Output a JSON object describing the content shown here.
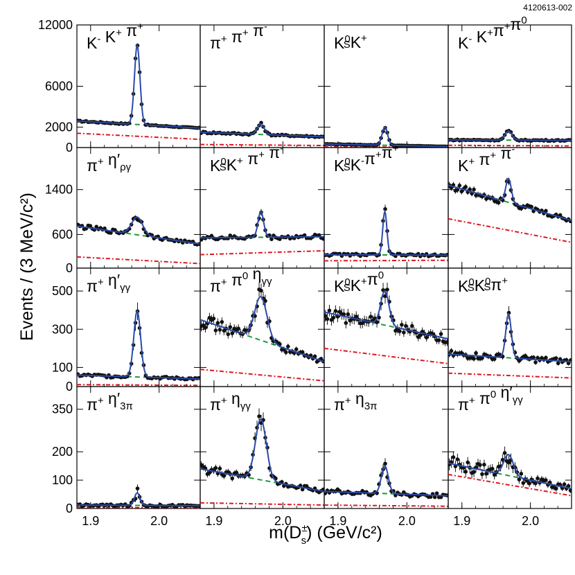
{
  "figure_id": "4120613-002",
  "ylabel": "Events / (3 MeV/c²)",
  "xlabel_main": "m(D",
  "xlabel_sup": "±",
  "xlabel_sub": "s",
  "xlabel_tail": ") (GeV/c²)",
  "colors": {
    "data": "#111111",
    "fit": "#2a4aa8",
    "background": "#1a9a3a",
    "other_background": "#e0141e"
  },
  "chart_data": [
    {
      "type": "scatter",
      "label": [
        [
          "K",
          "-"
        ],
        [
          " K",
          "+"
        ],
        [
          " π",
          "+"
        ]
      ],
      "xlim": [
        1.88,
        2.06
      ],
      "ylim": [
        0,
        12000
      ],
      "yticks": [
        0,
        2000,
        6000,
        12000
      ],
      "peak": 10000,
      "bkg_left": 2600,
      "bkg_right": 1900,
      "other_left": 1400,
      "other_right": 800,
      "width": 0.004,
      "error_frac": 0.015
    },
    {
      "type": "scatter",
      "label": [
        [
          "π",
          "+"
        ],
        [
          " π",
          "+"
        ],
        [
          " π",
          "-"
        ]
      ],
      "xlim": [
        1.88,
        2.06
      ],
      "ylim": [
        0,
        12000
      ],
      "yticks": [
        0,
        2000,
        6000,
        12000
      ],
      "peak": 2300,
      "bkg_left": 1500,
      "bkg_right": 1050,
      "other_left": 300,
      "other_right": 200,
      "width": 0.005,
      "error_frac": 0.04
    },
    {
      "type": "scatter",
      "label": [
        [
          "K",
          "0",
          "S"
        ],
        [
          "K",
          "+"
        ]
      ],
      "xlim": [
        1.88,
        2.06
      ],
      "ylim": [
        0,
        12000
      ],
      "yticks": [
        0,
        2000,
        6000,
        12000
      ],
      "peak": 2000,
      "bkg_left": 350,
      "bkg_right": 100,
      "other_left": 60,
      "other_right": 40,
      "width": 0.004,
      "error_frac": 0.05
    },
    {
      "type": "scatter",
      "label": [
        [
          "K",
          "-"
        ],
        [
          " K",
          "+"
        ],
        [
          "π",
          "+"
        ],
        [
          "π",
          "0"
        ]
      ],
      "xlim": [
        1.88,
        2.06
      ],
      "ylim": [
        0,
        12000
      ],
      "yticks": [
        0,
        2000,
        6000,
        12000
      ],
      "peak": 1600,
      "bkg_left": 750,
      "bkg_right": 700,
      "other_left": 220,
      "other_right": 160,
      "width": 0.005,
      "error_frac": 0.05
    },
    {
      "type": "scatter",
      "label": [
        [
          "π",
          "+"
        ],
        [
          " η′",
          "",
          "ργ"
        ]
      ],
      "xlim": [
        1.88,
        2.06
      ],
      "ylim": [
        0,
        2150
      ],
      "yticks": [
        0,
        600,
        1400
      ],
      "peak": 910,
      "bkg_left": 750,
      "bkg_right": 430,
      "other_left": 200,
      "other_right": 80,
      "width": 0.008,
      "error_frac": 0.035
    },
    {
      "type": "scatter",
      "label": [
        [
          "K",
          "0",
          "S"
        ],
        [
          "K",
          "+"
        ],
        [
          " π",
          "+"
        ],
        [
          " π",
          "-"
        ]
      ],
      "xlim": [
        1.88,
        2.06
      ],
      "ylim": [
        0,
        2150
      ],
      "yticks": [
        0,
        600,
        1400
      ],
      "peak": 1010,
      "bkg_left": 540,
      "bkg_right": 560,
      "other_left": 240,
      "other_right": 310,
      "width": 0.004,
      "error_frac": 0.045
    },
    {
      "type": "scatter",
      "label": [
        [
          "K",
          "0",
          "S"
        ],
        [
          "K",
          "-"
        ],
        [
          "π",
          "+"
        ],
        [
          "π",
          "+"
        ]
      ],
      "xlim": [
        1.88,
        2.06
      ],
      "ylim": [
        0,
        2150
      ],
      "yticks": [
        0,
        600,
        1400
      ],
      "peak": 1010,
      "bkg_left": 240,
      "bkg_right": 230,
      "other_left": 130,
      "other_right": 140,
      "width": 0.003,
      "error_frac": 0.06
    },
    {
      "type": "scatter",
      "label": [
        [
          "K",
          "+"
        ],
        [
          " π",
          "+"
        ],
        [
          " π",
          "-"
        ]
      ],
      "xlim": [
        1.88,
        2.06
      ],
      "ylim": [
        0,
        2150
      ],
      "yticks": [
        0,
        600,
        1400
      ],
      "peak": 1600,
      "bkg_left": 1480,
      "bkg_right": 850,
      "other_left": 880,
      "other_right": 460,
      "width": 0.004,
      "error_frac": 0.03
    },
    {
      "type": "scatter",
      "label": [
        [
          "π",
          "+"
        ],
        [
          " η′",
          "",
          "γγ"
        ]
      ],
      "xlim": [
        1.88,
        2.06
      ],
      "ylim": [
        0,
        620
      ],
      "yticks": [
        0,
        100,
        300,
        500
      ],
      "peak": 395,
      "bkg_left": 60,
      "bkg_right": 40,
      "other_left": 10,
      "other_right": 6,
      "width": 0.005,
      "error_frac": 0.09
    },
    {
      "type": "scatter",
      "label": [
        [
          "π",
          "+"
        ],
        [
          " π",
          "0"
        ],
        [
          " η",
          "",
          "γγ"
        ]
      ],
      "xlim": [
        1.88,
        2.06
      ],
      "ylim": [
        0,
        620
      ],
      "yticks": [
        0,
        100,
        300,
        500
      ],
      "peak": 470,
      "bkg_left": 350,
      "bkg_right": 130,
      "other_left": 90,
      "other_right": 30,
      "width": 0.009,
      "error_frac": 0.06
    },
    {
      "type": "scatter",
      "label": [
        [
          "K",
          "0",
          "S"
        ],
        [
          "K",
          "+"
        ],
        [
          "π",
          "0"
        ]
      ],
      "xlim": [
        1.88,
        2.06
      ],
      "ylim": [
        0,
        620
      ],
      "yticks": [
        0,
        100,
        300,
        500
      ],
      "peak": 500,
      "bkg_left": 390,
      "bkg_right": 250,
      "other_left": 200,
      "other_right": 120,
      "width": 0.006,
      "error_frac": 0.06
    },
    {
      "type": "scatter",
      "label": [
        [
          "K",
          "0",
          "S"
        ],
        [
          "K",
          "0",
          "S"
        ],
        [
          "π",
          "+"
        ]
      ],
      "xlim": [
        1.88,
        2.06
      ],
      "ylim": [
        0,
        620
      ],
      "yticks": [
        0,
        100,
        300,
        500
      ],
      "peak": 380,
      "bkg_left": 170,
      "bkg_right": 130,
      "other_left": 70,
      "other_right": 45,
      "width": 0.004,
      "error_frac": 0.07
    },
    {
      "type": "scatter",
      "label": [
        [
          "π",
          "+"
        ],
        [
          " η′",
          "",
          "3π"
        ]
      ],
      "xlim": [
        1.88,
        2.06
      ],
      "ylim": [
        0,
        430
      ],
      "yticks": [
        0,
        100,
        200,
        350
      ],
      "peak": 55,
      "bkg_left": 12,
      "bkg_right": 10,
      "other_left": 4,
      "other_right": 3,
      "width": 0.004,
      "error_frac": 0.2
    },
    {
      "type": "scatter",
      "label": [
        [
          "π",
          "+"
        ],
        [
          " η",
          "",
          "γγ"
        ]
      ],
      "xlim": [
        1.88,
        2.06
      ],
      "ylim": [
        0,
        430
      ],
      "yticks": [
        0,
        100,
        200,
        350
      ],
      "peak": 315,
      "bkg_left": 140,
      "bkg_right": 60,
      "other_left": 20,
      "other_right": 12,
      "width": 0.008,
      "error_frac": 0.07
    },
    {
      "type": "scatter",
      "label": [
        [
          "π",
          "+"
        ],
        [
          " η",
          "",
          "3π"
        ]
      ],
      "xlim": [
        1.88,
        2.06
      ],
      "ylim": [
        0,
        430
      ],
      "yticks": [
        0,
        100,
        200,
        350
      ],
      "peak": 150,
      "bkg_left": 60,
      "bkg_right": 45,
      "other_left": 12,
      "other_right": 8,
      "width": 0.005,
      "error_frac": 0.1
    },
    {
      "type": "scatter",
      "label": [
        [
          "π",
          "+"
        ],
        [
          " π",
          "0"
        ],
        [
          " η′",
          "",
          "γγ"
        ]
      ],
      "xlim": [
        1.88,
        2.06
      ],
      "ylim": [
        0,
        430
      ],
      "yticks": [
        0,
        100,
        200,
        350
      ],
      "peak": 190,
      "bkg_left": 160,
      "bkg_right": 70,
      "other_left": 120,
      "other_right": 45,
      "width": 0.007,
      "error_frac": 0.1
    }
  ],
  "xticks": [
    1.9,
    2.0
  ],
  "xtick_labels": [
    "1.9",
    "2.0"
  ],
  "ytick_labels": {
    "row0": [
      "0",
      "2000",
      "6000",
      "12000"
    ],
    "row1": [
      "0",
      "600",
      "1400"
    ],
    "row2": [
      "0",
      "100",
      "300",
      "500"
    ],
    "row3": [
      "0",
      "100",
      "200",
      "350"
    ]
  }
}
